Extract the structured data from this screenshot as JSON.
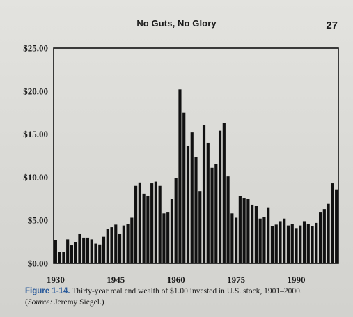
{
  "header": {
    "running_title": "No Guts, No Glory",
    "page_number": "27"
  },
  "caption": {
    "figure_label": "Figure 1-14.",
    "text": "Thirty-year real end wealth of $1.00 invested in U.S. stock, 1901–2000.",
    "source_open": "(",
    "source_label": "Source:",
    "source_text": " Jeremy Siegel.)"
  },
  "chart_data": {
    "type": "bar",
    "title": "",
    "xlabel": "",
    "ylabel": "",
    "ylim": [
      0,
      25
    ],
    "y_ticks": [
      {
        "value": 0,
        "label": "$0.00"
      },
      {
        "value": 5,
        "label": "$5.00"
      },
      {
        "value": 10,
        "label": "$10.00"
      },
      {
        "value": 15,
        "label": "$15.00"
      },
      {
        "value": 20,
        "label": "$20.00"
      },
      {
        "value": 25,
        "label": "$25.00"
      }
    ],
    "x_start": 1930,
    "x_end": 2000,
    "x_ticks": [
      {
        "value": 1930,
        "label": "1930"
      },
      {
        "value": 1945,
        "label": "1945"
      },
      {
        "value": 1960,
        "label": "1960"
      },
      {
        "value": 1975,
        "label": "1975"
      },
      {
        "value": 1990,
        "label": "1990"
      }
    ],
    "bar_color": "#111111",
    "years": [
      1930,
      1931,
      1932,
      1933,
      1934,
      1935,
      1936,
      1937,
      1938,
      1939,
      1940,
      1941,
      1942,
      1943,
      1944,
      1945,
      1946,
      1947,
      1948,
      1949,
      1950,
      1951,
      1952,
      1953,
      1954,
      1955,
      1956,
      1957,
      1958,
      1959,
      1960,
      1961,
      1962,
      1963,
      1964,
      1965,
      1966,
      1967,
      1968,
      1969,
      1970,
      1971,
      1972,
      1973,
      1974,
      1975,
      1976,
      1977,
      1978,
      1979,
      1980,
      1981,
      1982,
      1983,
      1984,
      1985,
      1986,
      1987,
      1988,
      1989,
      1990,
      1991,
      1992,
      1993,
      1994,
      1995,
      1996,
      1997,
      1998,
      1999,
      2000
    ],
    "values": [
      2.7,
      1.3,
      1.3,
      2.8,
      2.1,
      2.5,
      3.4,
      3.0,
      3.0,
      2.8,
      2.3,
      2.2,
      3.1,
      4.0,
      4.2,
      4.5,
      3.4,
      4.4,
      4.6,
      5.3,
      9.0,
      9.4,
      8.1,
      7.8,
      9.3,
      9.5,
      9.0,
      5.8,
      5.9,
      7.5,
      9.9,
      20.2,
      17.5,
      13.6,
      15.2,
      12.3,
      8.4,
      16.1,
      14.0,
      11.1,
      11.5,
      15.4,
      16.3,
      10.1,
      5.8,
      5.3,
      7.8,
      7.6,
      7.5,
      6.8,
      6.7,
      5.2,
      5.4,
      6.5,
      4.3,
      4.5,
      4.9,
      5.2,
      4.4,
      4.6,
      4.1,
      4.4,
      4.9,
      4.6,
      4.3,
      4.7,
      5.9,
      6.3,
      6.9,
      9.3,
      8.6
    ]
  }
}
